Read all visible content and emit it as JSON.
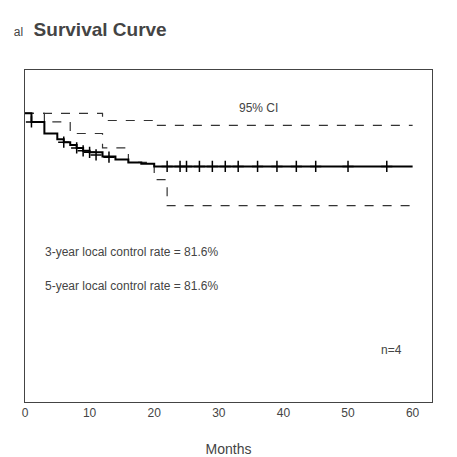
{
  "chart_data": {
    "type": "line",
    "title": "Survival Curve",
    "xlabel": "Months",
    "annotations": [
      "al",
      "95% CI",
      "3-year local control rate = 81.6%",
      "5-year local control rate = 81.6%",
      "n=4"
    ],
    "xlim": [
      0,
      63
    ],
    "ylim": [
      0.0,
      1.15
    ],
    "xticks": [
      0,
      10,
      20,
      30,
      40,
      50,
      60
    ],
    "tick_labels": "x",
    "grid": false,
    "series": [
      {
        "type": "step",
        "color": "#333333",
        "line_style": "dashed",
        "x": [
          0,
          2,
          5,
          12,
          20,
          60
        ],
        "values": [
          1.0,
          1.0,
          1.0,
          0.975,
          0.958,
          0.958
        ]
      },
      {
        "type": "step",
        "color": "#333333",
        "line_style": "dashed",
        "x": [
          0,
          3,
          7,
          12,
          16,
          20,
          22,
          60
        ],
        "values": [
          1.0,
          0.97,
          0.93,
          0.88,
          0.83,
          0.77,
          0.68,
          0.68
        ]
      },
      {
        "type": "step",
        "color": "#000000",
        "line_style": "solid",
        "x": [
          0,
          1,
          3,
          5,
          6,
          7,
          8,
          9,
          10,
          12,
          14,
          16,
          18,
          20,
          60
        ],
        "values": [
          1.0,
          0.97,
          0.93,
          0.91,
          0.9,
          0.89,
          0.88,
          0.87,
          0.865,
          0.85,
          0.84,
          0.83,
          0.825,
          0.816,
          0.816
        ]
      },
      {
        "type": "scatter",
        "color": "#000000",
        "marker": "plus",
        "x": [
          1,
          6,
          8,
          9,
          10,
          11,
          13,
          22,
          24,
          25,
          27,
          29,
          31,
          33,
          36,
          39,
          42,
          45,
          50,
          56
        ],
        "values": [
          0.97,
          0.9,
          0.88,
          0.87,
          0.865,
          0.856,
          0.848,
          0.816,
          0.816,
          0.816,
          0.816,
          0.816,
          0.816,
          0.816,
          0.816,
          0.816,
          0.816,
          0.816,
          0.816,
          0.816
        ]
      }
    ]
  }
}
